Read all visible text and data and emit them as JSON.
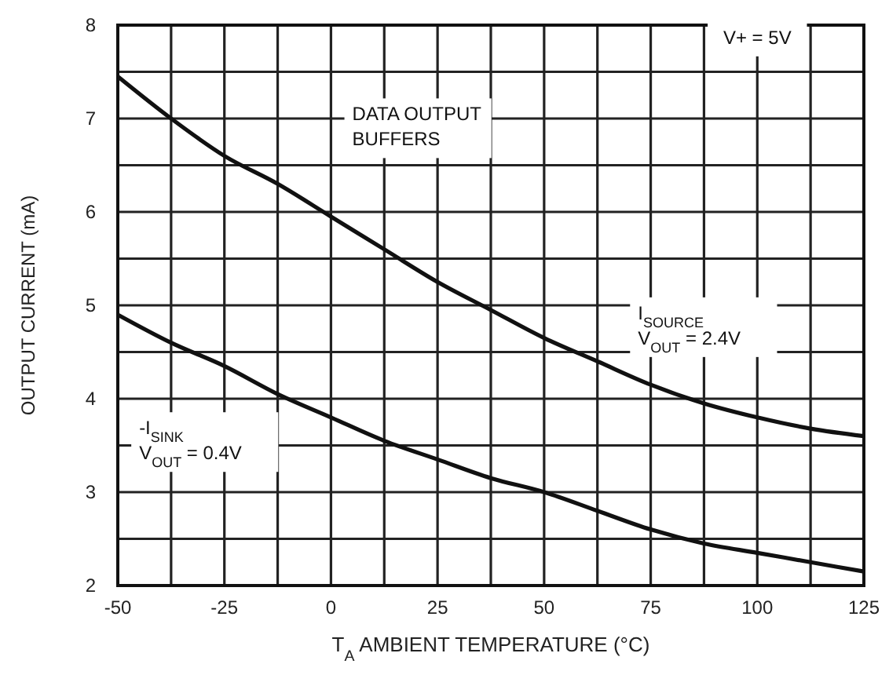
{
  "chart_data": {
    "type": "line",
    "xlabel": "T$_{A}$ AMBIENT TEMPERATURE (°C)",
    "ylabel": "OUTPUT CURRENT (mA)",
    "x": [
      -50,
      -37.5,
      -25,
      -12.5,
      0,
      12.5,
      25,
      37.5,
      50,
      62.5,
      75,
      87.5,
      100,
      112.5,
      125
    ],
    "series": [
      {
        "name": "I$_{SOURCE}$\nV$_{OUT}$ = 2.4V",
        "color": "#111111",
        "values": [
          7.45,
          7.0,
          6.6,
          6.3,
          5.95,
          5.6,
          5.25,
          4.95,
          4.65,
          4.4,
          4.15,
          3.95,
          3.8,
          3.68,
          3.6
        ]
      },
      {
        "name": "-I$_{SINK}$\nV$_{OUT}$ = 0.4V",
        "color": "#111111",
        "values": [
          4.9,
          4.6,
          4.35,
          4.05,
          3.8,
          3.55,
          3.35,
          3.15,
          3.0,
          2.8,
          2.6,
          2.45,
          2.35,
          2.25,
          2.15
        ]
      }
    ],
    "xlim": [
      -50,
      125
    ],
    "xticks": [
      -50,
      {
        "value": -37.5,
        "label": null
      },
      -25,
      {
        "value": -12.5,
        "label": null
      },
      0,
      {
        "value": 12.5,
        "label": null
      },
      25,
      {
        "value": 37.5,
        "label": null
      },
      50,
      {
        "value": 62.5,
        "label": null
      },
      75,
      {
        "value": 87.5,
        "label": null
      },
      100,
      {
        "value": 112.5,
        "label": null
      },
      125
    ],
    "ylim": [
      2,
      8
    ],
    "yticks": [
      2,
      {
        "value": 2.5,
        "label": null
      },
      3,
      {
        "value": 3.5,
        "label": null
      },
      4,
      {
        "value": 4.5,
        "label": null
      },
      5,
      {
        "value": 5.5,
        "label": null
      },
      6,
      {
        "value": 6.5,
        "label": null
      },
      7,
      {
        "value": 7.5,
        "label": null
      },
      8
    ],
    "grid": true,
    "marker": "none",
    "line_style": "solid",
    "annotations": [
      "V+ = 5V",
      "DATA OUTPUT\nBUFFERS"
    ]
  }
}
